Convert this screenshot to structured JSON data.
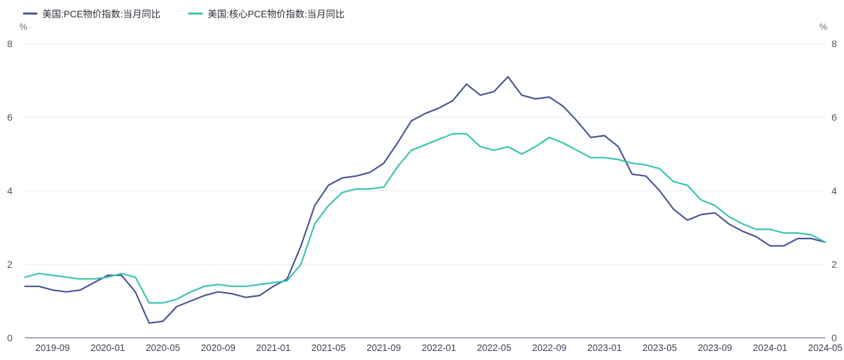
{
  "chart_data": {
    "type": "line",
    "unit": "%",
    "legend_position": "top-left",
    "grid": "horizontal",
    "ylim": [
      0,
      8
    ],
    "y_ticks": [
      0,
      2,
      4,
      6,
      8
    ],
    "y_axis_sides": [
      "left",
      "right"
    ],
    "x_tick_labels": [
      "2019-09",
      "2020-01",
      "2020-05",
      "2020-09",
      "2021-01",
      "2021-05",
      "2021-09",
      "2022-01",
      "2022-05",
      "2022-09",
      "2023-01",
      "2023-05",
      "2023-09",
      "2024-01",
      "2024-05"
    ],
    "x": [
      "2019-07",
      "2019-08",
      "2019-09",
      "2019-10",
      "2019-11",
      "2019-12",
      "2020-01",
      "2020-02",
      "2020-03",
      "2020-04",
      "2020-05",
      "2020-06",
      "2020-07",
      "2020-08",
      "2020-09",
      "2020-10",
      "2020-11",
      "2020-12",
      "2021-01",
      "2021-02",
      "2021-03",
      "2021-04",
      "2021-05",
      "2021-06",
      "2021-07",
      "2021-08",
      "2021-09",
      "2021-10",
      "2021-11",
      "2021-12",
      "2022-01",
      "2022-02",
      "2022-03",
      "2022-04",
      "2022-05",
      "2022-06",
      "2022-07",
      "2022-08",
      "2022-09",
      "2022-10",
      "2022-11",
      "2022-12",
      "2023-01",
      "2023-02",
      "2023-03",
      "2023-04",
      "2023-05",
      "2023-06",
      "2023-07",
      "2023-08",
      "2023-09",
      "2023-10",
      "2023-11",
      "2023-12",
      "2024-01",
      "2024-02",
      "2024-03",
      "2024-04",
      "2024-05"
    ],
    "series": [
      {
        "name": "美国:PCE物价指数:当月同比",
        "color": "#4a5795",
        "values": [
          1.4,
          1.4,
          1.3,
          1.25,
          1.3,
          1.5,
          1.7,
          1.7,
          1.25,
          0.4,
          0.45,
          0.85,
          1.0,
          1.15,
          1.25,
          1.2,
          1.1,
          1.15,
          1.4,
          1.6,
          2.5,
          3.6,
          4.15,
          4.35,
          4.4,
          4.5,
          4.75,
          5.3,
          5.9,
          6.1,
          6.25,
          6.45,
          6.9,
          6.6,
          6.7,
          7.1,
          6.6,
          6.5,
          6.55,
          6.3,
          5.9,
          5.45,
          5.5,
          5.2,
          4.45,
          4.4,
          4.0,
          3.5,
          3.2,
          3.35,
          3.4,
          3.1,
          2.9,
          2.75,
          2.5,
          2.5,
          2.7,
          2.7,
          2.6
        ]
      },
      {
        "name": "美国:核心PCE物价指数:当月同比",
        "color": "#3cc3b2",
        "values": [
          1.65,
          1.75,
          1.7,
          1.65,
          1.6,
          1.6,
          1.65,
          1.75,
          1.65,
          0.95,
          0.95,
          1.05,
          1.25,
          1.4,
          1.45,
          1.4,
          1.4,
          1.45,
          1.5,
          1.55,
          2.0,
          3.1,
          3.6,
          3.95,
          4.05,
          4.05,
          4.1,
          4.65,
          5.1,
          5.25,
          5.4,
          5.55,
          5.55,
          5.2,
          5.1,
          5.2,
          5.0,
          5.2,
          5.45,
          5.3,
          5.1,
          4.9,
          4.9,
          4.85,
          4.75,
          4.7,
          4.6,
          4.25,
          4.15,
          3.75,
          3.6,
          3.3,
          3.1,
          2.95,
          2.95,
          2.85,
          2.85,
          2.8,
          2.6
        ]
      }
    ],
    "colors": {
      "gridline": "#e8e9f1",
      "zero_axis": "#6a74a3",
      "background": "#ffffff"
    }
  }
}
